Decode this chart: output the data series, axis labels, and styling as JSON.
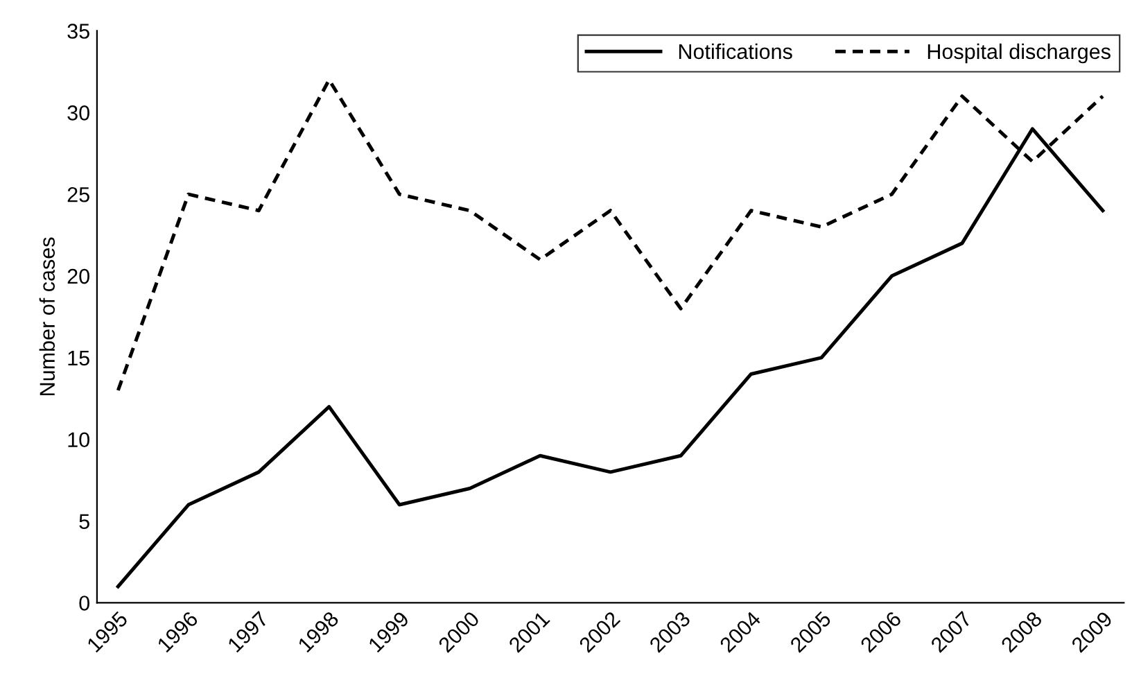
{
  "chart_data": {
    "type": "line",
    "ylabel": "Number of cases",
    "categories": [
      "1995",
      "1996",
      "1997",
      "1998",
      "1999",
      "2000",
      "2001",
      "2002",
      "2003",
      "2004",
      "2005",
      "2006",
      "2007",
      "2008",
      "2009"
    ],
    "series": [
      {
        "name": "Notifications",
        "color": "#000000",
        "line_style": "solid",
        "values": [
          1,
          6,
          8,
          12,
          6,
          7,
          9,
          8,
          9,
          14,
          15,
          20,
          22,
          29,
          24
        ]
      },
      {
        "name": "Hospital discharges",
        "color": "#000000",
        "line_style": "dashed",
        "values": [
          13,
          25,
          24,
          32,
          25,
          24,
          21,
          24,
          18,
          24,
          23,
          25,
          31,
          27,
          31
        ]
      }
    ],
    "ylim": [
      0,
      35
    ],
    "yticks": [
      0,
      5,
      10,
      15,
      20,
      25,
      30,
      35
    ],
    "grid": false,
    "legend": "top right",
    "marker": "none"
  }
}
